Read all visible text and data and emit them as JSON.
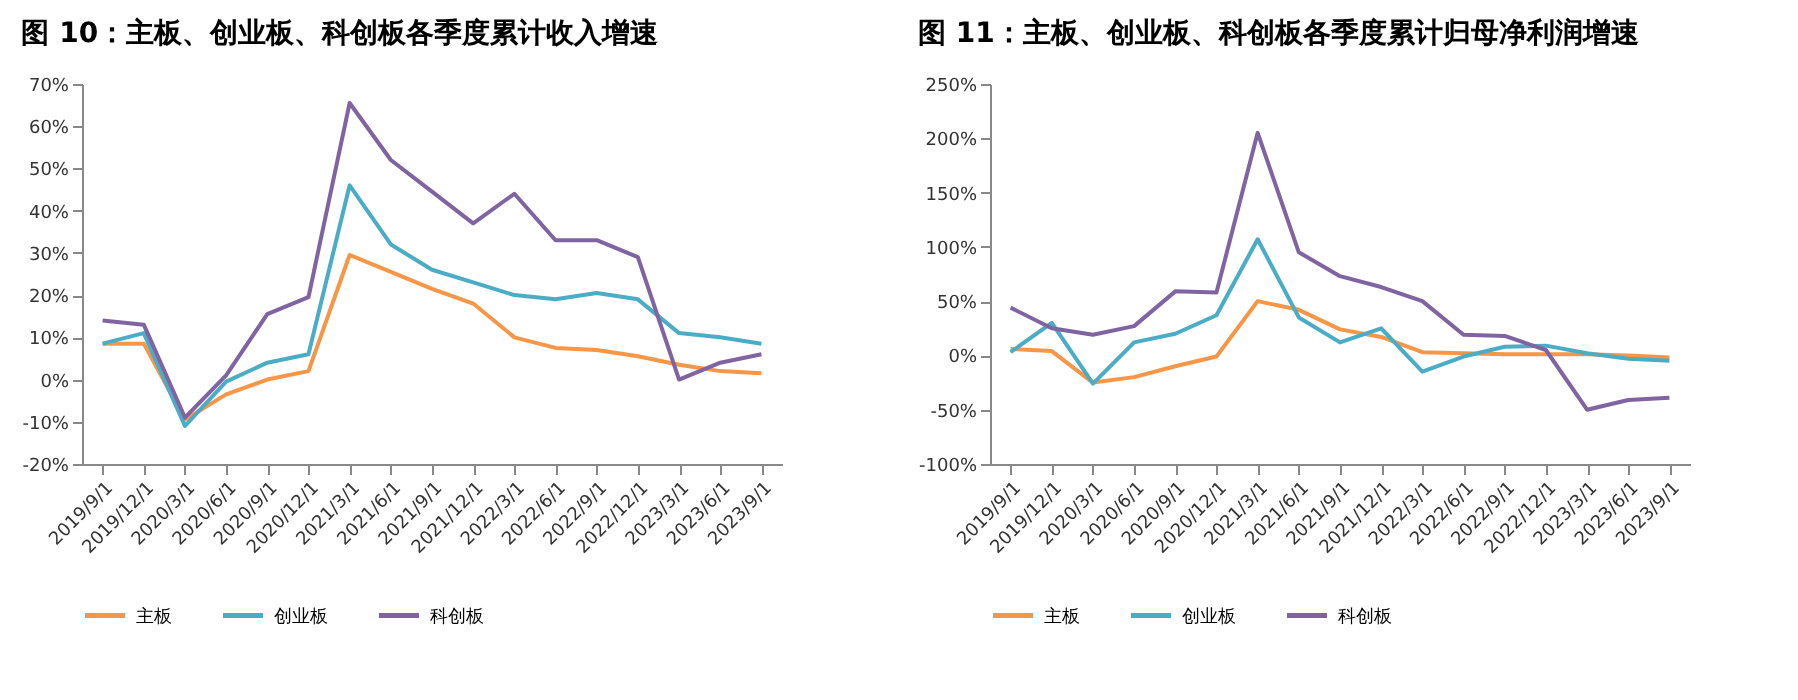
{
  "chart_data": [
    {
      "type": "line",
      "title": "图 10：主板、创业板、科创板各季度累计收入增速",
      "categories": [
        "2019/9/1",
        "2019/12/1",
        "2020/3/1",
        "2020/6/1",
        "2020/9/1",
        "2020/12/1",
        "2021/3/1",
        "2021/6/1",
        "2021/9/1",
        "2021/12/1",
        "2022/3/1",
        "2022/6/1",
        "2022/9/1",
        "2022/12/1",
        "2023/3/1",
        "2023/6/1",
        "2023/9/1"
      ],
      "series": [
        {
          "name": "主板",
          "color": "#f79646",
          "values": [
            8.5,
            8.5,
            -9.5,
            -3.5,
            0,
            2,
            29.5,
            25.5,
            21.5,
            18,
            10,
            7.5,
            7,
            5.5,
            3.5,
            2,
            1.5
          ]
        },
        {
          "name": "创业板",
          "color": "#4bacc6",
          "values": [
            8.5,
            11,
            -11,
            -0.5,
            4,
            6,
            46,
            32,
            26,
            23,
            20,
            19,
            20.5,
            19,
            11,
            10,
            8.5
          ]
        },
        {
          "name": "科创板",
          "color": "#8064a2",
          "values": [
            14,
            13,
            -9,
            1,
            15.5,
            19.5,
            65.5,
            52,
            44.5,
            37,
            44,
            33,
            33,
            29,
            0,
            4,
            6
          ]
        }
      ],
      "ylim": [
        -20,
        70
      ],
      "yticks": [
        {
          "value": -20,
          "label": "-20%"
        },
        {
          "value": -10,
          "label": "-10%"
        },
        {
          "value": 0,
          "label": "0%"
        },
        {
          "value": 10,
          "label": "10%"
        },
        {
          "value": 20,
          "label": "20%"
        },
        {
          "value": 30,
          "label": "30%"
        },
        {
          "value": 40,
          "label": "40%"
        },
        {
          "value": 50,
          "label": "50%"
        },
        {
          "value": 60,
          "label": "60%"
        },
        {
          "value": 70,
          "label": "70%"
        }
      ],
      "legend": "bottom"
    },
    {
      "type": "line",
      "title": "图 11：主板、创业板、科创板各季度累计归母净利润增速",
      "categories": [
        "2019/9/1",
        "2019/12/1",
        "2020/3/1",
        "2020/6/1",
        "2020/9/1",
        "2020/12/1",
        "2021/3/1",
        "2021/6/1",
        "2021/9/1",
        "2021/12/1",
        "2022/3/1",
        "2022/6/1",
        "2022/9/1",
        "2022/12/1",
        "2023/3/1",
        "2023/6/1",
        "2023/9/1"
      ],
      "series": [
        {
          "name": "主板",
          "color": "#f79646",
          "values": [
            6,
            4,
            -25,
            -20,
            -10,
            -1,
            50,
            42,
            24,
            17,
            3,
            2,
            1,
            1,
            1,
            0,
            -2
          ]
        },
        {
          "name": "创业板",
          "color": "#4bacc6",
          "values": [
            3,
            30,
            -26,
            12,
            20,
            37,
            107,
            35,
            12,
            25,
            -15,
            -1,
            8,
            9,
            2,
            -3,
            -5
          ]
        },
        {
          "name": "科创板",
          "color": "#8064a2",
          "values": [
            44,
            25,
            19,
            27,
            59,
            58,
            205,
            95,
            73,
            63,
            50,
            19,
            18,
            5,
            -50,
            -41,
            -39
          ]
        }
      ],
      "ylim": [
        -100,
        250
      ],
      "yticks": [
        {
          "value": -100,
          "label": "-100%"
        },
        {
          "value": -50,
          "label": "-50%"
        },
        {
          "value": 0,
          "label": "0%"
        },
        {
          "value": 50,
          "label": "50%"
        },
        {
          "value": 100,
          "label": "100%"
        },
        {
          "value": 150,
          "label": "150%"
        },
        {
          "value": 200,
          "label": "200%"
        },
        {
          "value": 250,
          "label": "250%"
        }
      ],
      "legend": "bottom"
    }
  ]
}
